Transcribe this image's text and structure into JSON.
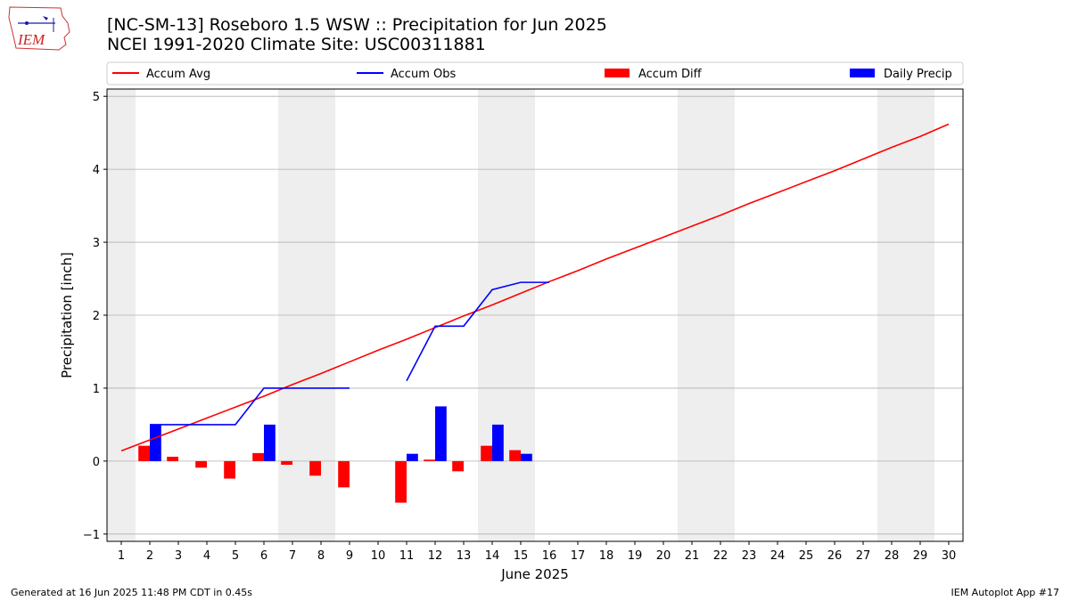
{
  "title_line1": "[NC-SM-13] Roseboro 1.5 WSW :: Precipitation for Jun 2025",
  "title_line2": "NCEI 1991-2020 Climate Site: USC00311881",
  "logo_text": "IEM",
  "footer_left": "Generated at 16 Jun 2025 11:48 PM CDT in 0.45s",
  "footer_right": "IEM Autoplot App #17",
  "colors": {
    "avg": "#ff0000",
    "obs": "#0000ff",
    "diff": "#ff0000",
    "daily": "#0000ff",
    "weekend": "#eeeeee",
    "grid": "#b0b0b0"
  },
  "chart_data": {
    "type": "bar",
    "xlabel": "June 2025",
    "ylabel": "Precipitation [inch]",
    "xlim": [
      0.5,
      30.5
    ],
    "ylim": [
      -1.1,
      5.1
    ],
    "xticks": [
      1,
      2,
      3,
      4,
      5,
      6,
      7,
      8,
      9,
      10,
      11,
      12,
      13,
      14,
      15,
      16,
      17,
      18,
      19,
      20,
      21,
      22,
      23,
      24,
      25,
      26,
      27,
      28,
      29,
      30
    ],
    "yticks": [
      -1,
      0,
      1,
      2,
      3,
      4,
      5
    ],
    "grid": "horizontal",
    "legend_placement": "top",
    "legend": [
      "Accum Avg",
      "Accum Obs",
      "Accum Diff",
      "Daily Precip"
    ],
    "weekend_shading": [
      [
        0.5,
        1.5
      ],
      [
        6.5,
        8.5
      ],
      [
        13.5,
        15.5
      ],
      [
        20.5,
        22.5
      ],
      [
        27.5,
        29.5
      ]
    ],
    "accum_avg": {
      "name": "Accum Avg",
      "days": [
        1,
        2,
        3,
        4,
        5,
        6,
        7,
        8,
        9,
        10,
        11,
        12,
        13,
        14,
        15,
        16,
        17,
        18,
        19,
        20,
        21,
        22,
        23,
        24,
        25,
        26,
        27,
        28,
        29,
        30
      ],
      "values": [
        0.14,
        0.29,
        0.44,
        0.59,
        0.74,
        0.89,
        1.05,
        1.2,
        1.36,
        1.52,
        1.67,
        1.83,
        1.99,
        2.14,
        2.3,
        2.46,
        2.61,
        2.77,
        2.92,
        3.07,
        3.22,
        3.37,
        3.53,
        3.68,
        3.83,
        3.98,
        4.14,
        4.3,
        4.45,
        4.62
      ]
    },
    "accum_obs": {
      "name": "Accum Obs",
      "segments": [
        {
          "days": [
            2,
            3,
            4,
            5,
            6,
            7,
            8,
            9
          ],
          "values": [
            0.5,
            0.5,
            0.5,
            0.5,
            1.0,
            1.0,
            1.0,
            1.0
          ]
        },
        {
          "days": [
            11,
            12,
            13,
            14,
            15,
            16
          ],
          "values": [
            1.1,
            1.85,
            1.85,
            2.35,
            2.45,
            2.45
          ]
        }
      ]
    },
    "accum_diff": {
      "name": "Accum Diff",
      "days": [
        2,
        3,
        4,
        5,
        6,
        7,
        8,
        9,
        11,
        12,
        13,
        14,
        15
      ],
      "values": [
        0.21,
        0.06,
        -0.09,
        -0.24,
        0.11,
        -0.05,
        -0.2,
        -0.36,
        -0.57,
        0.02,
        -0.14,
        0.21,
        0.15
      ]
    },
    "daily_precip": {
      "name": "Daily Precip",
      "days": [
        2,
        6,
        11,
        12,
        14,
        15
      ],
      "values": [
        0.5,
        0.5,
        0.1,
        0.75,
        0.5,
        0.1
      ]
    }
  }
}
